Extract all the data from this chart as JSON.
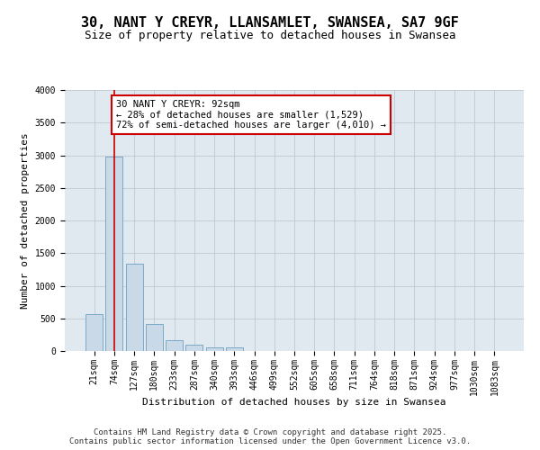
{
  "title_line1": "30, NANT Y CREYR, LLANSAMLET, SWANSEA, SA7 9GF",
  "title_line2": "Size of property relative to detached houses in Swansea",
  "xlabel": "Distribution of detached houses by size in Swansea",
  "ylabel": "Number of detached properties",
  "categories": [
    "21sqm",
    "74sqm",
    "127sqm",
    "180sqm",
    "233sqm",
    "287sqm",
    "340sqm",
    "393sqm",
    "446sqm",
    "499sqm",
    "552sqm",
    "605sqm",
    "658sqm",
    "711sqm",
    "764sqm",
    "818sqm",
    "871sqm",
    "924sqm",
    "977sqm",
    "1030sqm",
    "1083sqm"
  ],
  "values": [
    560,
    2980,
    1340,
    420,
    170,
    95,
    60,
    55,
    0,
    0,
    0,
    0,
    0,
    0,
    0,
    0,
    0,
    0,
    0,
    0,
    0
  ],
  "bar_color": "#c9d9e8",
  "bar_edge_color": "#7aaac8",
  "grid_color": "#c0c8d0",
  "background_color": "#e0e8f0",
  "annotation_box_text": "30 NANT Y CREYR: 92sqm\n← 28% of detached houses are smaller (1,529)\n72% of semi-detached houses are larger (4,010) →",
  "annotation_box_color": "#ffffff",
  "annotation_box_edge_color": "#cc0000",
  "vline_x": 1.0,
  "vline_color": "#cc0000",
  "ylim": [
    0,
    4000
  ],
  "yticks": [
    0,
    500,
    1000,
    1500,
    2000,
    2500,
    3000,
    3500,
    4000
  ],
  "footer_line1": "Contains HM Land Registry data © Crown copyright and database right 2025.",
  "footer_line2": "Contains public sector information licensed under the Open Government Licence v3.0.",
  "title_fontsize": 11,
  "subtitle_fontsize": 9,
  "axis_label_fontsize": 8,
  "tick_fontsize": 7,
  "annotation_fontsize": 7.5,
  "footer_fontsize": 6.5
}
